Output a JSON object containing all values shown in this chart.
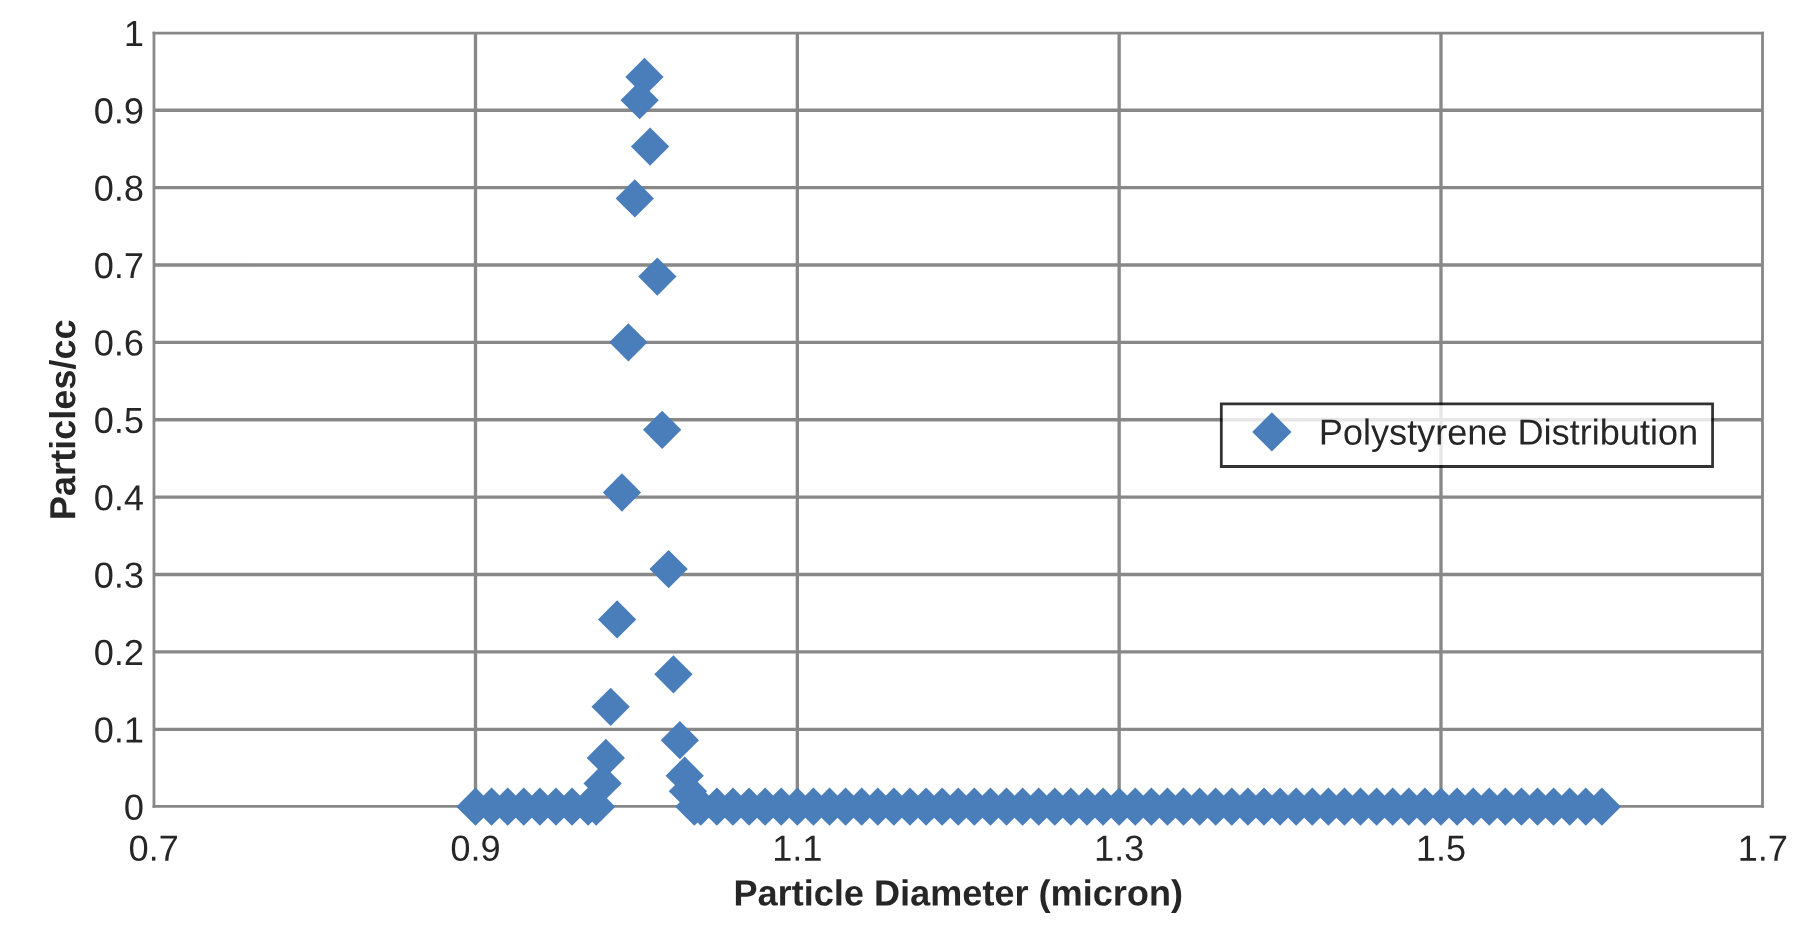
{
  "chart_data": {
    "type": "scatter",
    "xlabel": "Particle Diameter (micron)",
    "ylabel": "Particles/cc",
    "xlim": [
      0.7,
      1.7
    ],
    "xticks": [
      0.7,
      0.9,
      1.1,
      1.3,
      1.5,
      1.7
    ],
    "ylim": [
      0,
      1
    ],
    "yticks": [
      0,
      0.1,
      0.2,
      0.3,
      0.4,
      0.5,
      0.6,
      0.7,
      0.8,
      0.9,
      1
    ],
    "grid": true,
    "legend": "right",
    "marker": "diamond",
    "series": [
      {
        "name": "Polystyrene Distribution",
        "color": "#4a7ebb",
        "x": [
          0.9,
          0.91,
          0.92,
          0.93,
          0.94,
          0.95,
          0.96,
          0.97,
          0.975,
          0.979,
          0.981,
          0.984,
          0.988,
          0.991,
          0.995,
          0.999,
          1.002,
          1.005,
          1.0085,
          1.013,
          1.016,
          1.02,
          1.023,
          1.027,
          1.03,
          1.032,
          1.036,
          1.04,
          1.05,
          1.06,
          1.07,
          1.08,
          1.09,
          1.1,
          1.11,
          1.12,
          1.13,
          1.14,
          1.15,
          1.16,
          1.17,
          1.18,
          1.19,
          1.2,
          1.21,
          1.22,
          1.23,
          1.24,
          1.25,
          1.26,
          1.27,
          1.28,
          1.29,
          1.3,
          1.31,
          1.32,
          1.33,
          1.34,
          1.35,
          1.36,
          1.37,
          1.38,
          1.39,
          1.4,
          1.41,
          1.42,
          1.43,
          1.44,
          1.45,
          1.46,
          1.47,
          1.48,
          1.49,
          1.5,
          1.51,
          1.52,
          1.53,
          1.54,
          1.55,
          1.56,
          1.57,
          1.58,
          1.59,
          1.6
        ],
        "values": [
          0,
          0,
          0,
          0,
          0,
          0,
          0,
          0,
          0,
          0.03,
          0.063,
          0.129,
          0.242,
          0.406,
          0.6,
          0.786,
          0.913,
          0.943,
          0.853,
          0.685,
          0.487,
          0.307,
          0.171,
          0.086,
          0.04,
          0.02,
          0,
          0,
          0,
          0,
          0,
          0,
          0,
          0,
          0,
          0,
          0,
          0,
          0,
          0,
          0,
          0,
          0,
          0,
          0,
          0,
          0,
          0,
          0,
          0,
          0,
          0,
          0,
          0,
          0,
          0,
          0,
          0,
          0,
          0,
          0,
          0,
          0,
          0,
          0,
          0,
          0,
          0,
          0,
          0,
          0,
          0,
          0,
          0,
          0,
          0,
          0,
          0,
          0,
          0,
          0,
          0,
          0,
          0
        ]
      }
    ]
  }
}
